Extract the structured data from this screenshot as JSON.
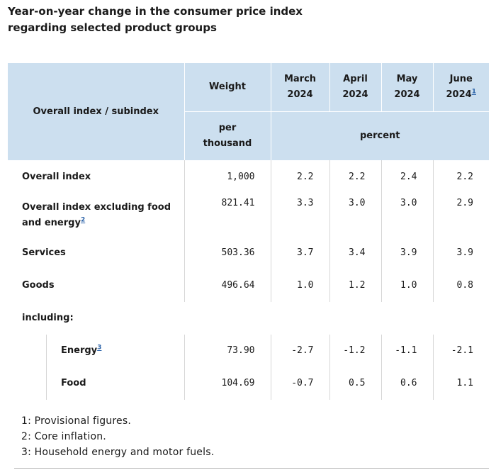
{
  "title": {
    "line1": "Year-on-year change in the consumer price index",
    "line2": "regarding selected product groups"
  },
  "table": {
    "header": {
      "row_label": "Overall index / subindex",
      "weight_label": "Weight",
      "weight_unit_line1": "per",
      "weight_unit_line2": "thousand",
      "percent_label": "percent",
      "months": [
        {
          "name": "March",
          "year": "2024",
          "footnote": ""
        },
        {
          "name": "April",
          "year": "2024",
          "footnote": ""
        },
        {
          "name": "May",
          "year": "2024",
          "footnote": ""
        },
        {
          "name": "June",
          "year": "2024",
          "footnote": "1"
        }
      ]
    },
    "rows": [
      {
        "label": "Overall index",
        "weight": "1,000",
        "values": [
          "2.2",
          "2.2",
          "2.4",
          "2.2"
        ]
      },
      {
        "label_line1": "Overall index excluding food",
        "label_line2": "and energy",
        "footnote": "2",
        "weight": "821.41",
        "values": [
          "3.3",
          "3.0",
          "3.0",
          "2.9"
        ]
      },
      {
        "label": "Services",
        "weight": "503.36",
        "values": [
          "3.7",
          "3.4",
          "3.9",
          "3.9"
        ]
      },
      {
        "label": "Goods",
        "weight": "496.64",
        "values": [
          "1.0",
          "1.2",
          "1.0",
          "0.8"
        ]
      },
      {
        "label": "including:"
      },
      {
        "label": "Energy",
        "footnote": "3",
        "weight": "73.90",
        "values": [
          "-2.7",
          "-1.2",
          "-1.1",
          "-2.1"
        ]
      },
      {
        "label": "Food",
        "weight": "104.69",
        "values": [
          "-0.7",
          "0.5",
          "0.6",
          "1.1"
        ]
      }
    ]
  },
  "footnotes": [
    "1: Provisional figures.",
    "2: Core inflation.",
    "3: Household energy and motor fuels."
  ]
}
